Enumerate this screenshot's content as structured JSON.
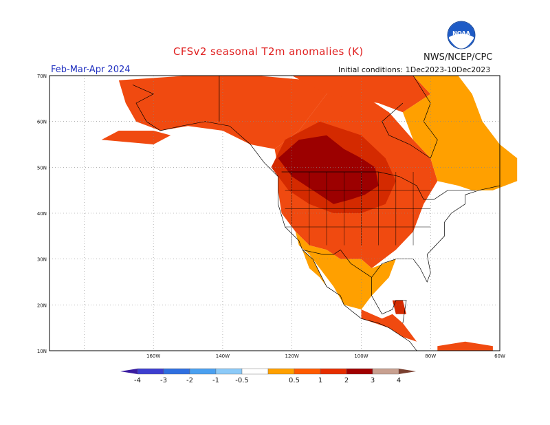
{
  "title": "CFSv2 seasonal T2m anomalies (K)",
  "agency": "NWS/NCEP/CPC",
  "logo_text": "NOAA",
  "season": "Feb-Mar-Apr 2024",
  "initial_conditions": "Initial conditions: 1Dec2023-10Dec2023",
  "lat_labels": [
    "70N",
    "60N",
    "50N",
    "40N",
    "30N",
    "20N",
    "10N"
  ],
  "lon_labels": [
    "160W",
    "140W",
    "120W",
    "100W",
    "80W",
    "60W"
  ],
  "colorbar": {
    "bins": [
      {
        "range": "< -4",
        "color": "#3a1ca0"
      },
      {
        "range": "-4 to -3",
        "color": "#3d3ed0"
      },
      {
        "range": "-3 to -2",
        "color": "#2f6fe0"
      },
      {
        "range": "-2 to -1",
        "color": "#4aa0f0"
      },
      {
        "range": "-1 to -0.5",
        "color": "#8ccaf8"
      },
      {
        "range": "-0.5 to 0.5",
        "color": "#ffffff"
      },
      {
        "range": "0.5 to 1",
        "color": "#ffa000"
      },
      {
        "range": "1 to 2",
        "color": "#ff5a00"
      },
      {
        "range": "2 to 3",
        "color": "#e62d00"
      },
      {
        "range": "3 to 4",
        "color": "#a00000"
      },
      {
        "range": "> 4",
        "color": "#c8a090"
      }
    ],
    "labels": [
      "-4",
      "-3",
      "-2",
      "-1",
      "-0.5",
      "0.5",
      "1",
      "2",
      "3",
      "4"
    ],
    "end_color": "#7a4030"
  },
  "anomaly_colors": {
    "orange": "#ffa000",
    "red_orange": "#f04a10",
    "red": "#d42a00",
    "dark_red": "#9c0000"
  }
}
